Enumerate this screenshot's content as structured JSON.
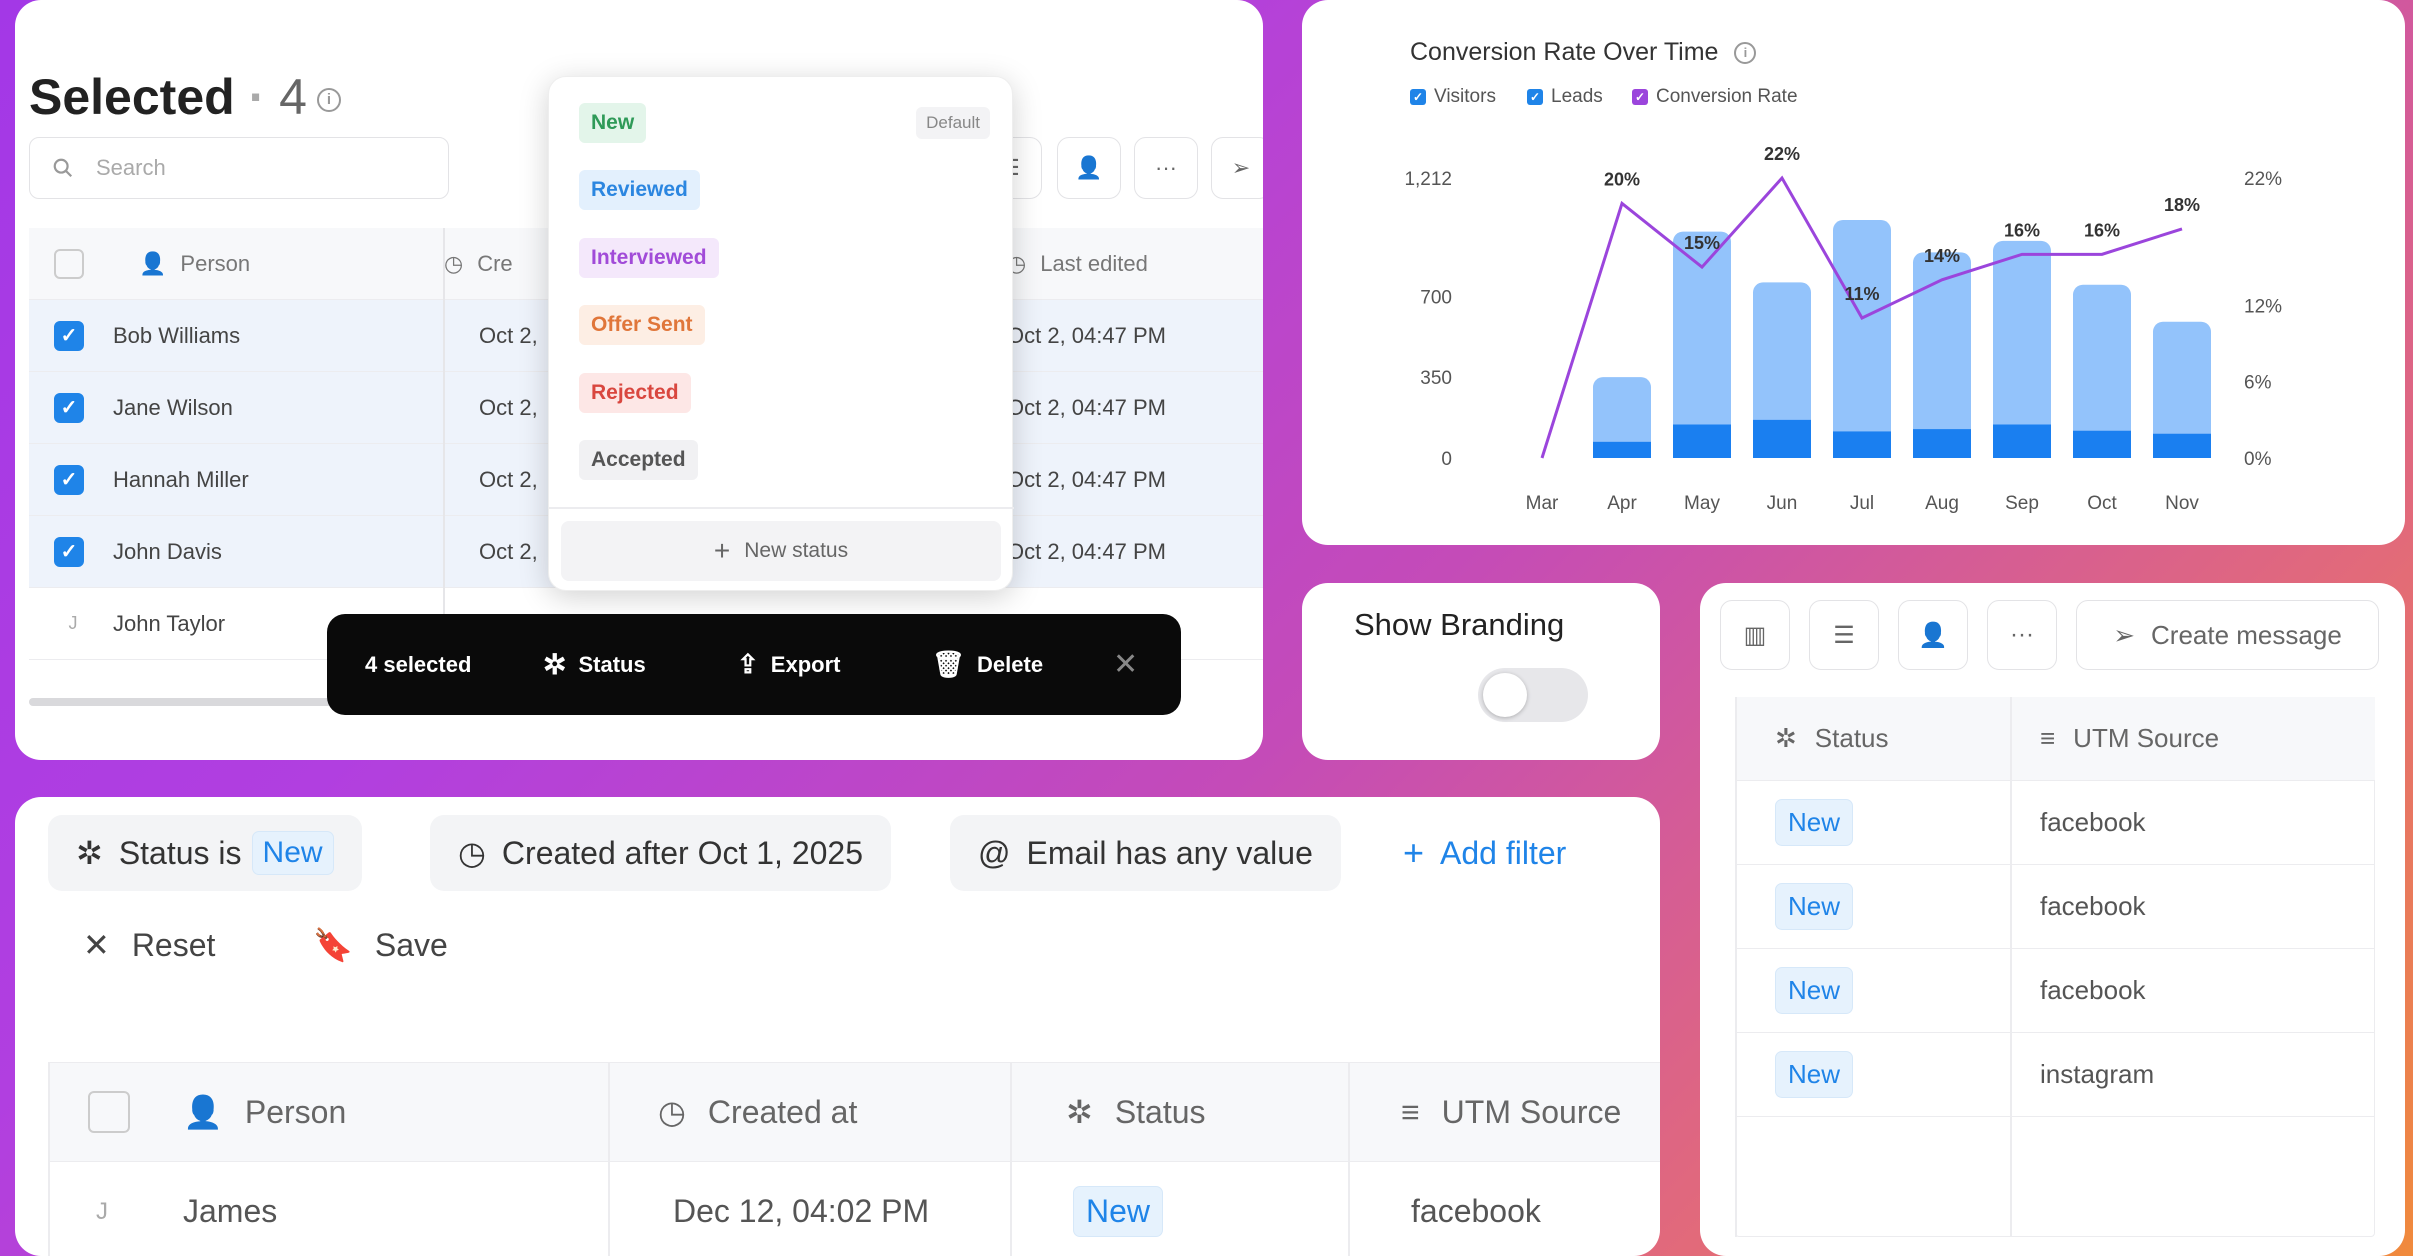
{
  "selected_panel": {
    "title": "Selected",
    "count": "4",
    "search_placeholder": "Search",
    "columns": {
      "person": "Person",
      "created": "Cre",
      "last_edited": "Last edited"
    },
    "rows": [
      {
        "name": "Bob Williams",
        "created": "Oct 2,",
        "edited": "Oct 2, 04:47 PM",
        "checked": true
      },
      {
        "name": "Jane Wilson",
        "created": "Oct 2,",
        "edited": "Oct 2, 04:47 PM",
        "checked": true
      },
      {
        "name": "Hannah Miller",
        "created": "Oct 2,",
        "edited": "Oct 2, 04:47 PM",
        "checked": true
      },
      {
        "name": "John Davis",
        "created": "Oct 2,",
        "edited": "Oct 2, 04:47 PM",
        "checked": true
      },
      {
        "name": "John Taylor",
        "initial": "J",
        "checked": false
      }
    ]
  },
  "status_menu": {
    "default_label": "Default",
    "new_status": "New status",
    "items": [
      {
        "label": "New",
        "bg": "#e3f5ea",
        "color": "#2f9a58"
      },
      {
        "label": "Reviewed",
        "bg": "#e3f0fd",
        "color": "#2b86e0"
      },
      {
        "label": "Interviewed",
        "bg": "#f4e8fb",
        "color": "#a14bd8"
      },
      {
        "label": "Offer Sent",
        "bg": "#fdeee4",
        "color": "#e0763a"
      },
      {
        "label": "Rejected",
        "bg": "#fde7e6",
        "color": "#d9473f"
      },
      {
        "label": "Accepted",
        "bg": "#f1f1f3",
        "color": "#555555"
      }
    ]
  },
  "action_bar": {
    "selected": "4 selected",
    "status": "Status",
    "export": "Export",
    "delete": "Delete"
  },
  "chart_data": {
    "type": "bar",
    "title": "Conversion Rate Over Time",
    "legend": [
      "Visitors",
      "Leads",
      "Conversion Rate"
    ],
    "categories": [
      "Mar",
      "Apr",
      "May",
      "Jun",
      "Jul",
      "Aug",
      "Sep",
      "Oct",
      "Nov"
    ],
    "series": [
      {
        "name": "Visitors",
        "values": [
          0,
          350,
          980,
          760,
          1030,
          890,
          940,
          750,
          590
        ],
        "color": "#93c3fb"
      },
      {
        "name": "Leads",
        "values": [
          0,
          70,
          145,
          165,
          115,
          125,
          145,
          118,
          105
        ],
        "color": "#1a7ff0"
      },
      {
        "name": "Conversion Rate",
        "values": [
          0,
          20,
          15,
          22,
          11,
          14,
          16,
          16,
          18
        ],
        "axis": "right",
        "color": "#9b45dc"
      }
    ],
    "data_labels": [
      "20%",
      "15%",
      "22%",
      "11%",
      "14%",
      "16%",
      "16%",
      "18%"
    ],
    "left_ticks": [
      "1,212",
      "700",
      "350",
      "0"
    ],
    "right_ticks": [
      "22%",
      "12%",
      "6%",
      "0%"
    ],
    "ylim": [
      0,
      1212
    ],
    "y2lim": [
      0,
      22
    ]
  },
  "branding": {
    "label": "Show Branding",
    "enabled": false
  },
  "right_table": {
    "create_message": "Create message",
    "columns": {
      "status": "Status",
      "utm": "UTM Source"
    },
    "rows": [
      {
        "status": "New",
        "utm": "facebook"
      },
      {
        "status": "New",
        "utm": "facebook"
      },
      {
        "status": "New",
        "utm": "facebook"
      },
      {
        "status": "New",
        "utm": "instagram"
      }
    ]
  },
  "filters": {
    "status_prefix": "Status is",
    "status_value": "New",
    "created": "Created after Oct 1, 2025",
    "email": "Email has any value",
    "add_filter": "Add filter",
    "reset": "Reset",
    "save": "Save"
  },
  "bottom_table": {
    "columns": {
      "person": "Person",
      "created": "Created at",
      "status": "Status",
      "utm": "UTM Source"
    },
    "row": {
      "initial": "J",
      "name": "James",
      "created": "Dec 12, 04:02 PM",
      "status": "New",
      "utm": "facebook"
    }
  }
}
